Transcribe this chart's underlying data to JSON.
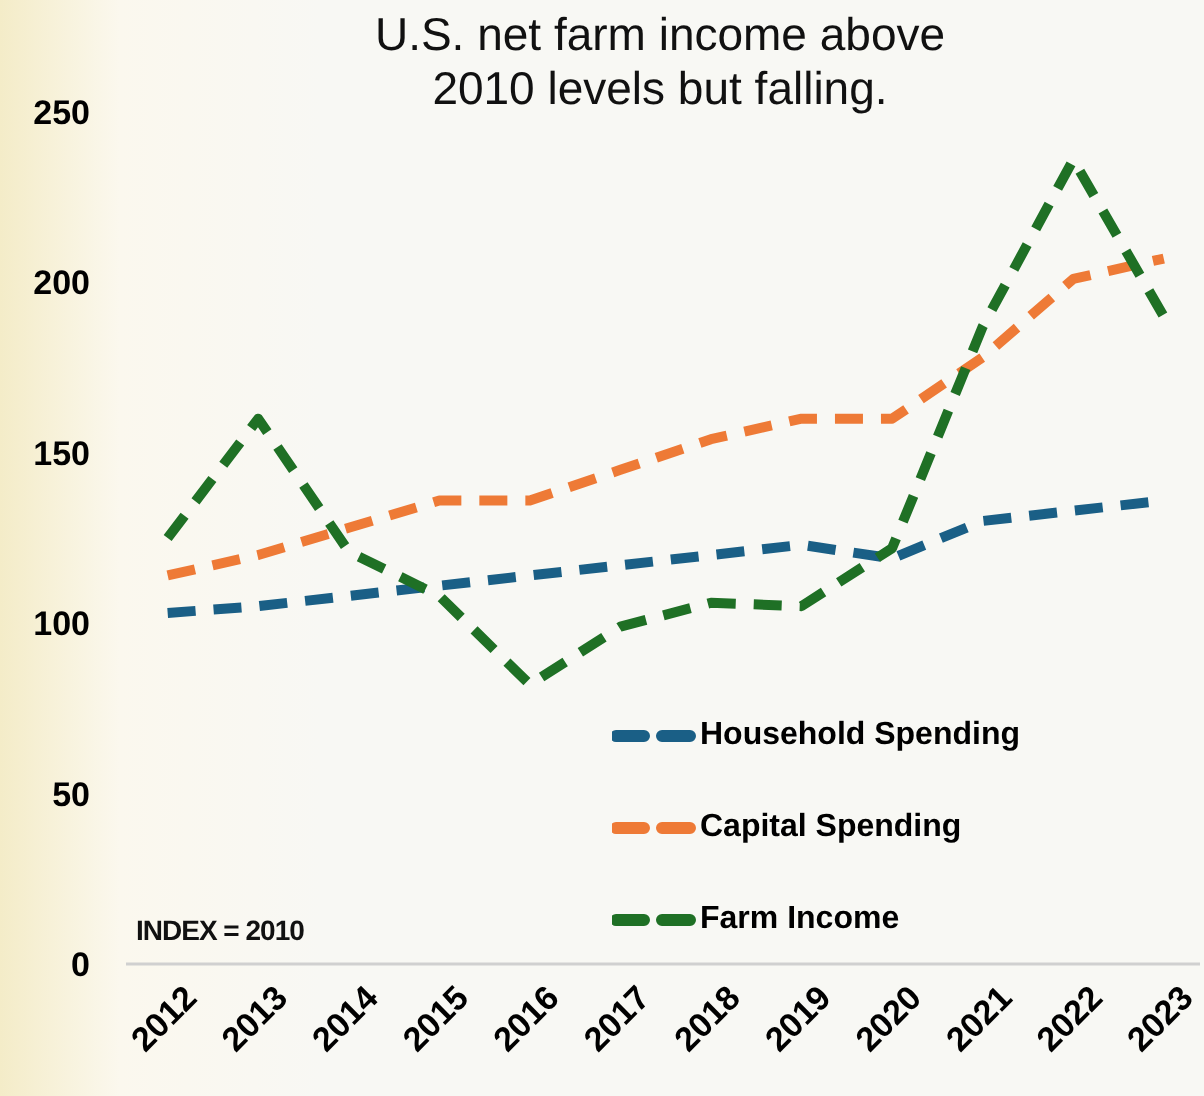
{
  "chart_data": {
    "type": "line",
    "title": "U.S. net farm income above\n2010 levels but falling.",
    "categories": [
      "2012",
      "2013",
      "2014",
      "2015",
      "2016",
      "2017",
      "2018",
      "2019",
      "2020",
      "2021",
      "2022",
      "2023"
    ],
    "series": [
      {
        "name": "Household Spending",
        "color": "#1a5f86",
        "values": [
          103,
          105,
          108,
          111,
          114,
          117,
          120,
          123,
          119,
          130,
          133,
          136
        ]
      },
      {
        "name": "Capital Spending",
        "color": "#ee7a36",
        "values": [
          114,
          120,
          128,
          136,
          136,
          145,
          154,
          160,
          160,
          178,
          201,
          207
        ]
      },
      {
        "name": "Farm Income",
        "color": "#1f7025",
        "values": [
          125,
          160,
          121,
          108,
          82,
          99,
          106,
          105,
          122,
          187,
          236,
          190
        ]
      }
    ],
    "ylim": [
      0,
      250
    ],
    "yticks": [
      0,
      50,
      100,
      150,
      200,
      250
    ],
    "legend": "bottom right",
    "marker": "none",
    "line_style": "dashed",
    "annotations": [
      "INDEX = 2010"
    ]
  }
}
